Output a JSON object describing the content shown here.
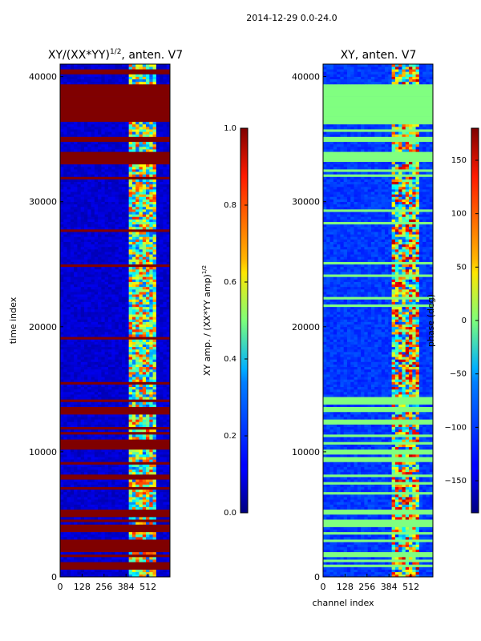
{
  "suptitle": "2014-12-29 0.0-24.0",
  "chart_data": [
    {
      "type": "heatmap",
      "title": "XY/(XX*YY)^1/2, anten. V7",
      "title_base": "XY/(XX*YY)",
      "title_exp": "1/2",
      "title_suffix": ", anten. V7",
      "xlabel": "",
      "ylabel": "time index",
      "xlim": [
        0,
        640
      ],
      "ylim": [
        0,
        41000
      ],
      "xticks": [
        0,
        128,
        256,
        384,
        512
      ],
      "xtick_labels": [
        "0",
        "128",
        "256",
        "384",
        "512"
      ],
      "yticks": [
        0,
        10000,
        20000,
        30000,
        40000
      ],
      "ytick_labels": [
        "0",
        "10000",
        "20000",
        "30000",
        "40000"
      ],
      "colorbar": {
        "label": "XY amp. / (XX*YY amp)^1/2",
        "label_base": "XY amp. / (XX*YY amp)",
        "label_exp": "1/2",
        "range": [
          0.0,
          1.0
        ],
        "ticks": [
          0.0,
          0.2,
          0.4,
          0.6,
          0.8,
          1.0
        ],
        "tick_labels": [
          "0.0",
          "0.2",
          "0.4",
          "0.6",
          "0.8",
          "1.0"
        ]
      },
      "regions": [
        {
          "y0": 36500,
          "y1": 39400,
          "x0": 0,
          "x1": 640,
          "value": 1.0
        },
        {
          "y0": 34800,
          "y1": 35200,
          "x0": 0,
          "x1": 640,
          "value": 1.0
        },
        {
          "y0": 33200,
          "y1": 34000,
          "x0": 0,
          "x1": 640,
          "value": 1.0
        },
        {
          "y0": 40200,
          "y1": 40500,
          "x0": 0,
          "x1": 640,
          "value": 1.0
        }
      ],
      "band_channels": [
        410,
        560
      ],
      "dense_flag_rows_range": [
        600,
        14800
      ],
      "note": "Approximate description: low coherence (~0.1) across most channels; high variable coherence in channels ~410-560; many flagged rows (value 1.0) below 15000 and in bands near 33000-40000."
    },
    {
      "type": "heatmap",
      "title": "XY, anten. V7",
      "xlabel": "channel index",
      "ylabel": "",
      "xlim": [
        0,
        640
      ],
      "ylim": [
        0,
        41000
      ],
      "xticks": [
        0,
        128,
        256,
        384,
        512
      ],
      "xtick_labels": [
        "0",
        "128",
        "256",
        "384",
        "512"
      ],
      "yticks": [
        0,
        10000,
        20000,
        30000,
        40000
      ],
      "ytick_labels": [
        "0",
        "10000",
        "20000",
        "30000",
        "40000"
      ],
      "colorbar": {
        "label": "phase (deg)",
        "range": [
          -180,
          180
        ],
        "ticks": [
          -150,
          -100,
          -50,
          0,
          50,
          100,
          150
        ],
        "tick_labels": [
          "−150",
          "−100",
          "−50",
          "0",
          "50",
          "100",
          "150"
        ]
      },
      "regions": [
        {
          "y0": 36500,
          "y1": 39400,
          "x0": 0,
          "x1": 640,
          "value": 0
        },
        {
          "y0": 34800,
          "y1": 35200,
          "x0": 0,
          "x1": 640,
          "value": 0
        },
        {
          "y0": 33200,
          "y1": 34000,
          "x0": 0,
          "x1": 640,
          "value": 0
        }
      ],
      "band_channels": [
        410,
        560
      ],
      "dense_flag_rows_range": [
        600,
        14800
      ],
      "note": "Approximate description: phase ~ -120 deg across most channels; variable phase in channels ~410-560; flagged rows show 0 deg."
    }
  ]
}
